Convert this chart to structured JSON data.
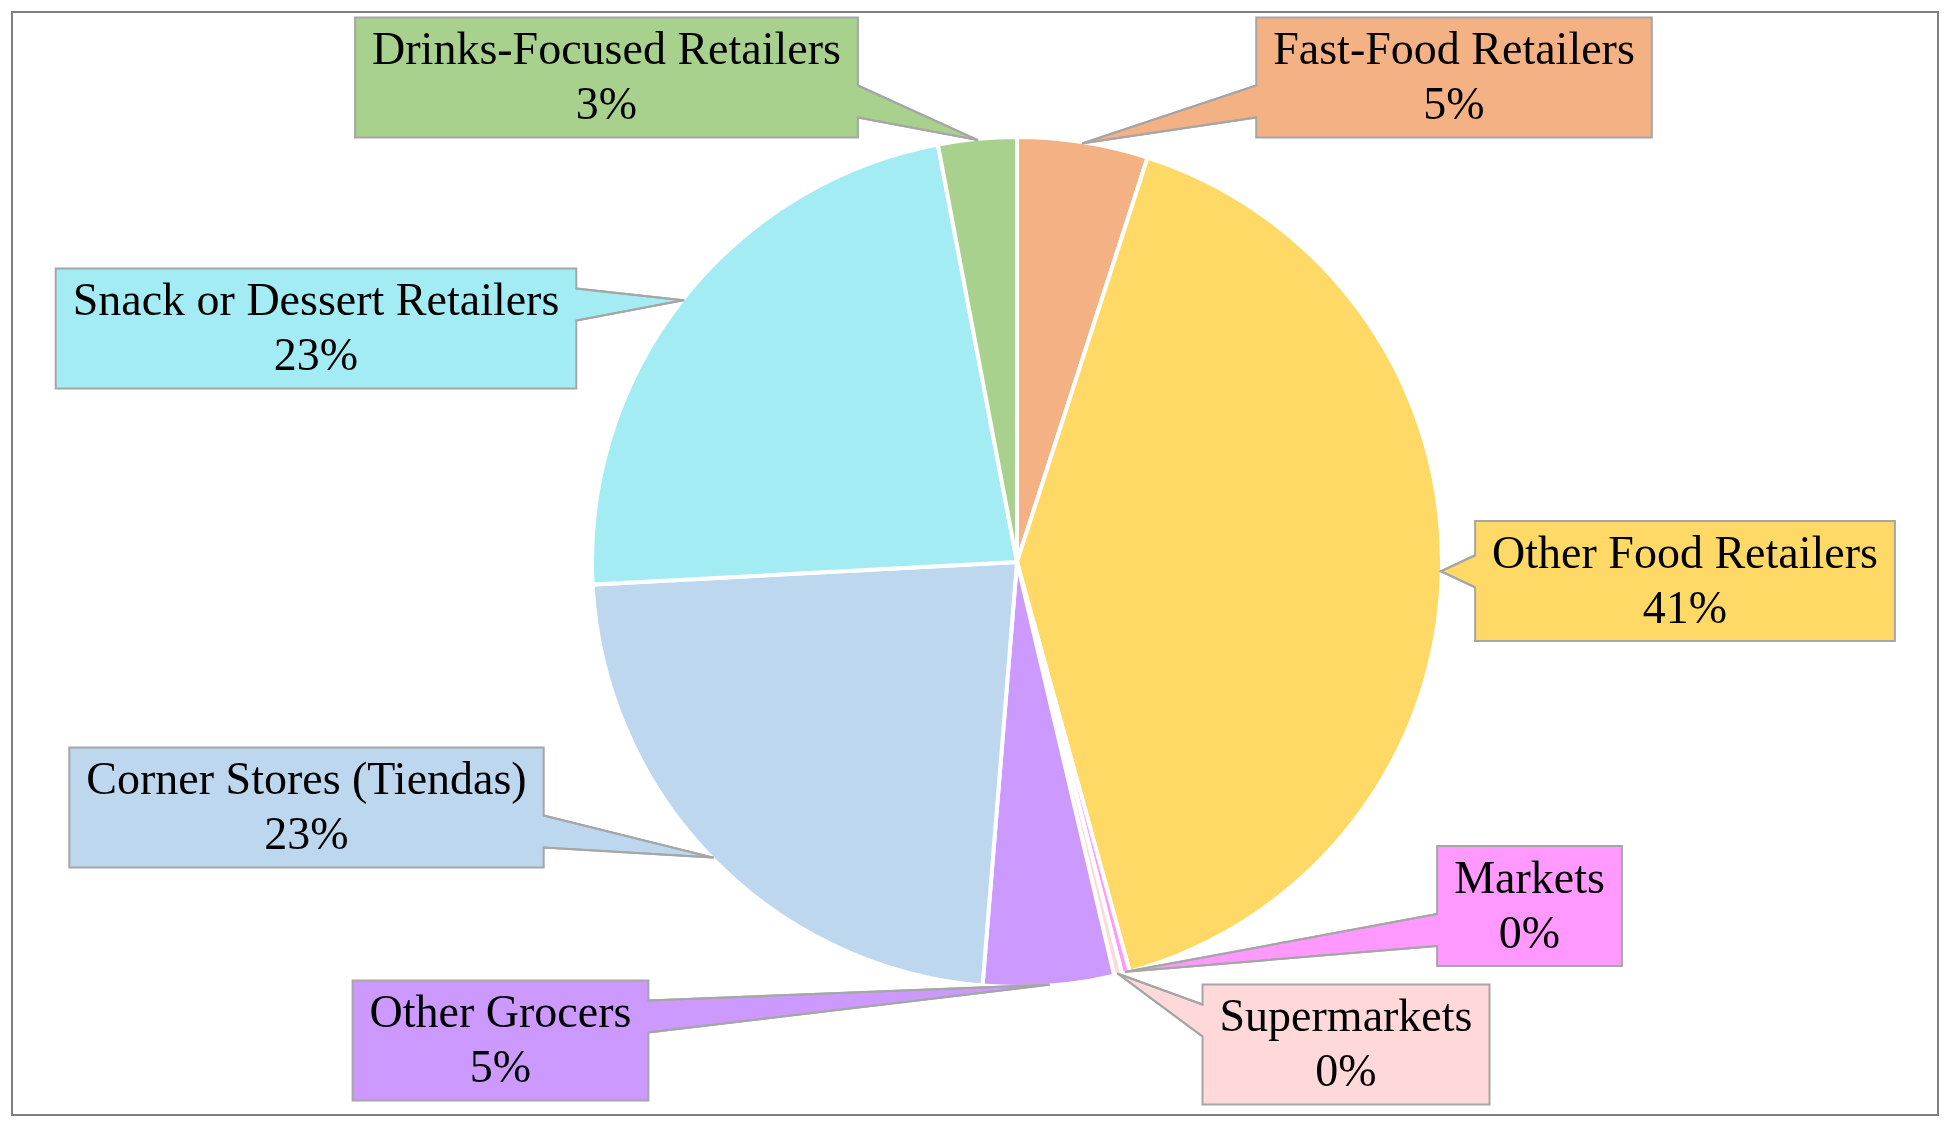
{
  "chart_data": {
    "type": "pie",
    "categories": [
      "Fast-Food Retailers",
      "Other Food Retailers",
      "Markets",
      "Supermarkets",
      "Other Grocers",
      "Corner Stores (Tiendas)",
      "Snack or Dessert Retailers",
      "Drinks-Focused Retailers"
    ],
    "values": [
      5,
      41,
      0.3,
      0.3,
      5,
      23,
      23,
      3
    ],
    "value_labels": [
      "5%",
      "41%",
      "0%",
      "0%",
      "5%",
      "23%",
      "23%",
      "3%"
    ],
    "colors": [
      "#f4b183",
      "#ffd966",
      "#ff99ff",
      "#ffd9d9",
      "#cc99ff",
      "#bdd7ee",
      "#a3ecf3",
      "#a9d18e"
    ]
  }
}
